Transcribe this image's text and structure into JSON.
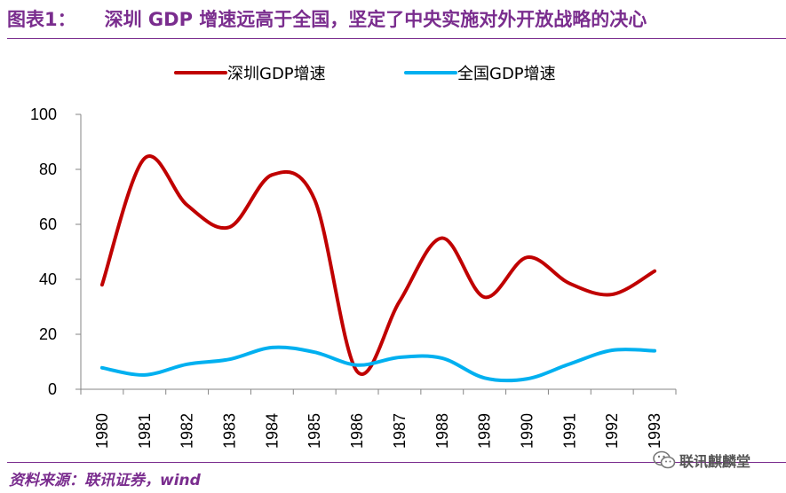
{
  "header": {
    "label": "图表1：",
    "text": "深圳 GDP 增速远高于全国，坚定了中央实施对外开放战略的决心"
  },
  "footer": {
    "source": "资料来源：联讯证券，wind",
    "watermark": "联讯麒麟堂",
    "watermark_icon": "wechat-icon"
  },
  "colors": {
    "title": "#7a2d8e",
    "shenzhen": "#c00000",
    "national": "#00b0f0"
  },
  "chart_data": {
    "type": "line",
    "title": "",
    "xlabel": "",
    "ylabel": "",
    "categories": [
      "1980",
      "1981",
      "1982",
      "1983",
      "1984",
      "1985",
      "1986",
      "1987",
      "1988",
      "1989",
      "1990",
      "1991",
      "1992",
      "1993"
    ],
    "series": [
      {
        "name": "深圳GDP增速",
        "color": "#c00000",
        "values": [
          38,
          84,
          67,
          59,
          78,
          69,
          6.5,
          32,
          55,
          33.5,
          48,
          38.5,
          34.5,
          43
        ]
      },
      {
        "name": "全国GDP增速",
        "color": "#00b0f0",
        "values": [
          7.8,
          5.2,
          9.1,
          10.9,
          15.2,
          13.5,
          8.8,
          11.6,
          11.3,
          4.1,
          3.8,
          9.2,
          14.2,
          14
        ]
      }
    ],
    "ylim": [
      0,
      100
    ],
    "yticks": [
      0,
      20,
      40,
      60,
      80,
      100
    ],
    "smooth": true,
    "legend": "top"
  }
}
